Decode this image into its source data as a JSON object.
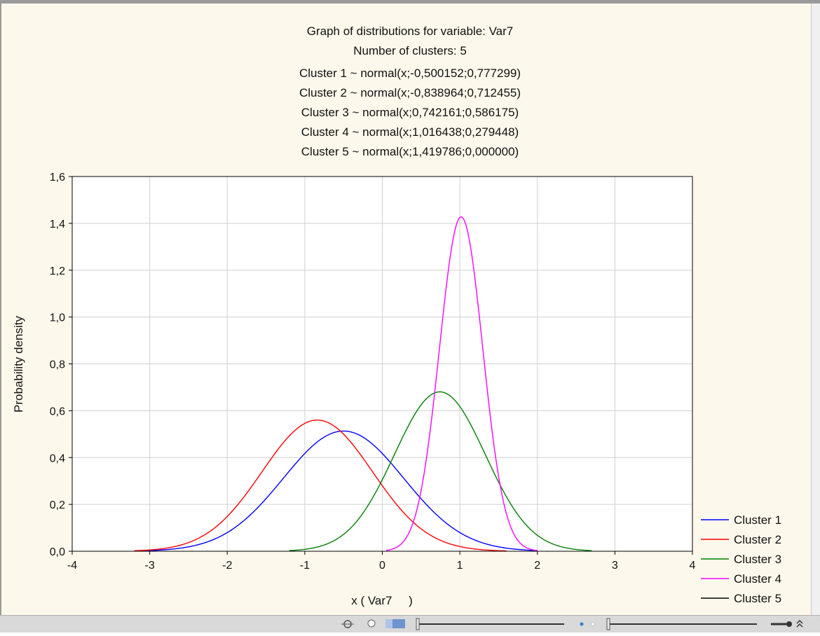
{
  "chart_data": {
    "type": "line",
    "title": "Graph of distributions for variable: Var7",
    "subtitle": "Number of clusters: 5",
    "formula_lines": [
      "Cluster 1 ~ normal(x;-0,500152;0,777299)",
      "Cluster 2 ~ normal(x;-0,838964;0,712455)",
      "Cluster 3 ~ normal(x;0,742161;0,586175)",
      "Cluster 4 ~ normal(x;1,016438;0,279448)",
      "Cluster 5 ~ normal(x;1,419786;0,000000)"
    ],
    "xlabel": "x ( Var7     )",
    "ylabel": "Probability density",
    "xlim": [
      -4,
      4
    ],
    "ylim": [
      0,
      1.6
    ],
    "xticks": [
      -4,
      -3,
      -2,
      -1,
      0,
      1,
      2,
      3,
      4
    ],
    "xtick_labels": [
      "-4",
      "-3",
      "-2",
      "-1",
      "0",
      "1",
      "2",
      "3",
      "4"
    ],
    "yticks": [
      0,
      0.2,
      0.4,
      0.6,
      0.8,
      1.0,
      1.2,
      1.4,
      1.6
    ],
    "ytick_labels": [
      "0,0",
      "0,2",
      "0,4",
      "0,6",
      "0,8",
      "1,0",
      "1,2",
      "1,4",
      "1,6"
    ],
    "grid": true,
    "legend_position": "bottom-right",
    "series": [
      {
        "name": "Cluster 1",
        "color": "#0000ff",
        "mean": -0.500152,
        "sd": 0.777299,
        "x_range": [
          -3.2,
          2.0
        ]
      },
      {
        "name": "Cluster 2",
        "color": "#ff0000",
        "mean": -0.838964,
        "sd": 0.712455,
        "x_range": [
          -3.2,
          1.6
        ]
      },
      {
        "name": "Cluster 3",
        "color": "#008000",
        "mean": 0.742161,
        "sd": 0.586175,
        "x_range": [
          -1.2,
          2.7
        ]
      },
      {
        "name": "Cluster 4",
        "color": "#ff00ff",
        "mean": 1.016438,
        "sd": 0.279448,
        "x_range": [
          0.05,
          2.0
        ]
      },
      {
        "name": "Cluster 5",
        "color": "#000000",
        "mean": 1.419786,
        "sd": 0.0,
        "x_range": []
      }
    ]
  }
}
